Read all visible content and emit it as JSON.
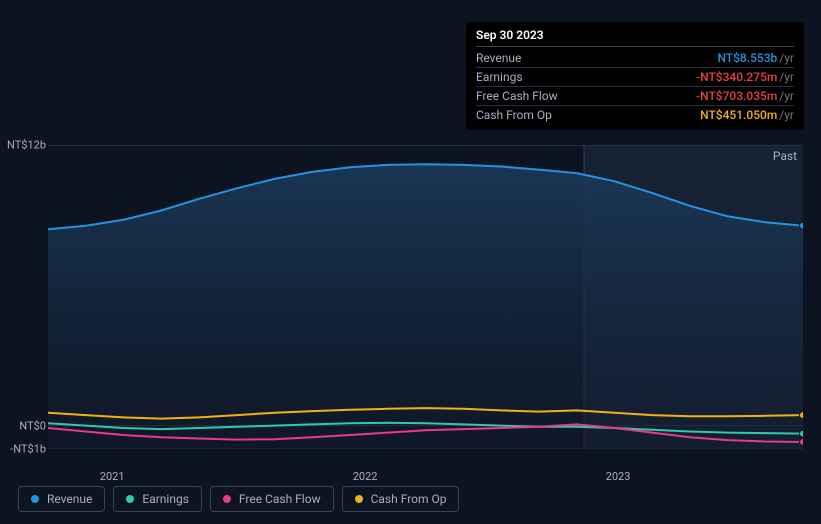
{
  "tooltip": {
    "title": "Sep 30 2023",
    "unit_suffix": "/yr",
    "rows": [
      {
        "label": "Revenue",
        "value": "NT$8.553b",
        "color": "#2394df"
      },
      {
        "label": "Earnings",
        "value": "-NT$340.275m",
        "color": "#e64141"
      },
      {
        "label": "Free Cash Flow",
        "value": "-NT$703.035m",
        "color": "#e64141"
      },
      {
        "label": "Cash From Op",
        "value": "NT$451.050m",
        "color": "#eeb219"
      }
    ]
  },
  "chart": {
    "type": "area-line",
    "background_color": "#0d1421",
    "grid_color": "#3a4254",
    "plot_bg_gradient_top": "#1b3a5a",
    "plot_bg_gradient_bottom": "#101a2b",
    "highlight_band_color": "#162133",
    "highlight_band_x": [
      0.71,
      1.0
    ],
    "past_label": "Past",
    "y_axis": {
      "min": -1,
      "max": 12,
      "ticks": [
        {
          "v": 12,
          "label": "NT$12b"
        },
        {
          "v": 0,
          "label": "NT$0"
        },
        {
          "v": -1,
          "label": "-NT$1b"
        }
      ],
      "text_color": "#a6b0c3",
      "font_size": 11
    },
    "x_axis": {
      "ticks": [
        {
          "pos": 0.085,
          "label": "2021"
        },
        {
          "pos": 0.42,
          "label": "2022"
        },
        {
          "pos": 0.755,
          "label": "2023"
        }
      ],
      "text_color": "#a6b0c3",
      "font_size": 11
    },
    "vertical_marker_x": 0.71,
    "vertical_marker_color": "#3a4254",
    "series": [
      {
        "name": "Revenue",
        "color": "#2394df",
        "fill": true,
        "fill_top": "#1b3a5a",
        "fill_bottom": "#101a2b",
        "line_width": 2,
        "end_marker": true,
        "points": [
          [
            0.0,
            8.4
          ],
          [
            0.05,
            8.55
          ],
          [
            0.1,
            8.8
          ],
          [
            0.15,
            9.2
          ],
          [
            0.2,
            9.7
          ],
          [
            0.25,
            10.15
          ],
          [
            0.3,
            10.55
          ],
          [
            0.35,
            10.85
          ],
          [
            0.4,
            11.05
          ],
          [
            0.45,
            11.15
          ],
          [
            0.5,
            11.18
          ],
          [
            0.55,
            11.15
          ],
          [
            0.6,
            11.08
          ],
          [
            0.65,
            10.95
          ],
          [
            0.7,
            10.8
          ],
          [
            0.75,
            10.45
          ],
          [
            0.8,
            9.95
          ],
          [
            0.85,
            9.4
          ],
          [
            0.9,
            8.95
          ],
          [
            0.95,
            8.7
          ],
          [
            1.0,
            8.55
          ]
        ]
      },
      {
        "name": "Cash From Op",
        "color": "#eeb219",
        "fill": false,
        "line_width": 2,
        "end_marker": true,
        "points": [
          [
            0.0,
            0.55
          ],
          [
            0.05,
            0.45
          ],
          [
            0.1,
            0.35
          ],
          [
            0.15,
            0.3
          ],
          [
            0.2,
            0.35
          ],
          [
            0.25,
            0.45
          ],
          [
            0.3,
            0.55
          ],
          [
            0.35,
            0.62
          ],
          [
            0.4,
            0.68
          ],
          [
            0.45,
            0.72
          ],
          [
            0.5,
            0.75
          ],
          [
            0.55,
            0.72
          ],
          [
            0.6,
            0.65
          ],
          [
            0.65,
            0.6
          ],
          [
            0.7,
            0.65
          ],
          [
            0.75,
            0.55
          ],
          [
            0.8,
            0.45
          ],
          [
            0.85,
            0.4
          ],
          [
            0.9,
            0.4
          ],
          [
            0.95,
            0.42
          ],
          [
            1.0,
            0.45
          ]
        ]
      },
      {
        "name": "Earnings",
        "color": "#30c9b0",
        "fill": false,
        "line_width": 2,
        "end_marker": true,
        "points": [
          [
            0.0,
            0.1
          ],
          [
            0.05,
            0.0
          ],
          [
            0.1,
            -0.1
          ],
          [
            0.15,
            -0.15
          ],
          [
            0.2,
            -0.1
          ],
          [
            0.25,
            -0.05
          ],
          [
            0.3,
            0.0
          ],
          [
            0.35,
            0.05
          ],
          [
            0.4,
            0.1
          ],
          [
            0.45,
            0.12
          ],
          [
            0.5,
            0.1
          ],
          [
            0.55,
            0.05
          ],
          [
            0.6,
            0.0
          ],
          [
            0.65,
            -0.05
          ],
          [
            0.7,
            -0.05
          ],
          [
            0.75,
            -0.1
          ],
          [
            0.8,
            -0.18
          ],
          [
            0.85,
            -0.25
          ],
          [
            0.9,
            -0.3
          ],
          [
            0.95,
            -0.32
          ],
          [
            1.0,
            -0.34
          ]
        ]
      },
      {
        "name": "Free Cash Flow",
        "color": "#e6398f",
        "fill": false,
        "line_width": 2,
        "end_marker": true,
        "points": [
          [
            0.0,
            -0.1
          ],
          [
            0.05,
            -0.25
          ],
          [
            0.1,
            -0.4
          ],
          [
            0.15,
            -0.5
          ],
          [
            0.2,
            -0.55
          ],
          [
            0.25,
            -0.6
          ],
          [
            0.3,
            -0.58
          ],
          [
            0.35,
            -0.5
          ],
          [
            0.4,
            -0.4
          ],
          [
            0.45,
            -0.3
          ],
          [
            0.5,
            -0.2
          ],
          [
            0.55,
            -0.15
          ],
          [
            0.6,
            -0.1
          ],
          [
            0.65,
            -0.05
          ],
          [
            0.7,
            0.05
          ],
          [
            0.75,
            -0.1
          ],
          [
            0.8,
            -0.3
          ],
          [
            0.85,
            -0.5
          ],
          [
            0.9,
            -0.62
          ],
          [
            0.95,
            -0.68
          ],
          [
            1.0,
            -0.7
          ]
        ]
      }
    ]
  },
  "legend": {
    "items": [
      {
        "label": "Revenue",
        "color": "#2394df"
      },
      {
        "label": "Earnings",
        "color": "#30c9b0"
      },
      {
        "label": "Free Cash Flow",
        "color": "#e6398f"
      },
      {
        "label": "Cash From Op",
        "color": "#eeb219"
      }
    ],
    "border_color": "#3a4254",
    "text_color": "#a6b0c3",
    "font_size": 12
  }
}
